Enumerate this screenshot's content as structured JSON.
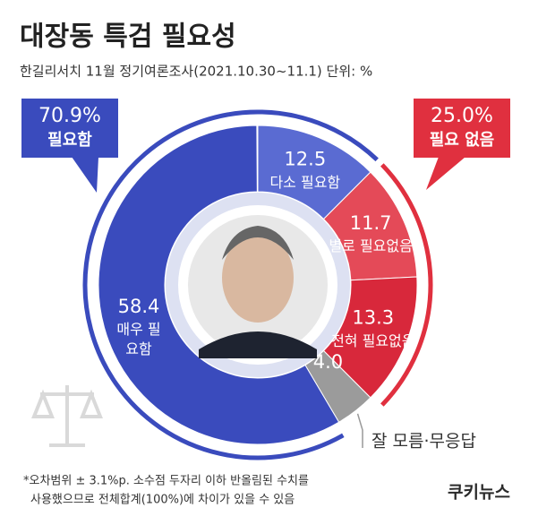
{
  "chart_data": {
    "type": "donut",
    "title": "대장동 특검 필요성",
    "subtitle": "한길리서치 11월 정기여론조사(2021.10.30~11.1) 단위: %",
    "categories": [
      "다소 필요함",
      "별로 필요없음",
      "전혀 필요없음",
      "잘 모름·무응답",
      "매우 필요함"
    ],
    "values": [
      12.5,
      11.7,
      13.3,
      4.0,
      58.4
    ],
    "value_labels": [
      "12.5",
      "11.7",
      "13.3",
      "4.0",
      "58.4"
    ],
    "colors": [
      "#5a6bd2",
      "#e44a58",
      "#d8283b",
      "#9b9b9b",
      "#3a4bbd"
    ],
    "totals": {
      "names": [
        "필요함",
        "필요 없음"
      ],
      "values": [
        70.9,
        25.0
      ],
      "value_labels": [
        "70.9%",
        "25.0%"
      ],
      "colors": [
        "#3a4bbd",
        "#e0303f"
      ]
    },
    "footnote": [
      "*오차범위 ± 3.1%p. 소수점 두자리 이하 반올림된 수치를",
      "사용했으므로 전체합계(100%)에 차이가 있을 수 있음"
    ],
    "source_logo": "쿠키뉴스"
  }
}
